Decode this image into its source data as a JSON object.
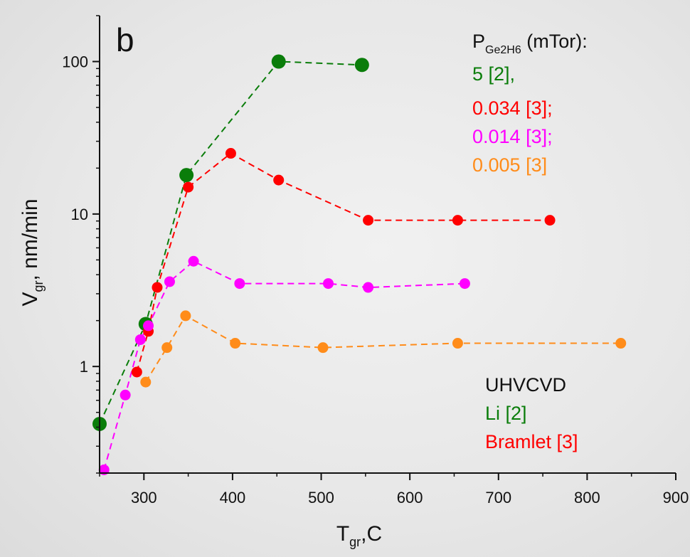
{
  "chart_data": {
    "type": "scatter",
    "panel_label": "b",
    "xlabel": "T",
    "xlabel_sub": "gr",
    "xlabel_suffix": ",C",
    "ylabel": "V",
    "ylabel_sub": "gr",
    "ylabel_suffix": ", nm/min",
    "xlim": [
      250,
      900
    ],
    "ylim": [
      0.2,
      200
    ],
    "yscale": "log",
    "xticks": [
      300,
      400,
      500,
      600,
      700,
      800,
      900
    ],
    "yticks": [
      1,
      10,
      100
    ],
    "grid": false,
    "line_style": "dashed",
    "legend_title_main": "P",
    "legend_title_sub": "Ge2H6",
    "legend_title_suffix": " (mTor):",
    "legend_position": "top-right",
    "series": [
      {
        "name": "5 [2],",
        "color": "#0a7d0a",
        "marker_size": "large",
        "x": [
          250,
          302,
          348,
          452,
          546
        ],
        "y": [
          0.42,
          1.9,
          18,
          100,
          95
        ]
      },
      {
        "name": "0.034 [3];",
        "color": "#ff0000",
        "marker_size": "small",
        "x": [
          292,
          305,
          315,
          350,
          398,
          452,
          553,
          654,
          758
        ],
        "y": [
          0.92,
          1.7,
          3.3,
          15,
          25,
          16.7,
          9.1,
          9.1,
          9.1
        ]
      },
      {
        "name": "0.014 [3];",
        "color": "#ff00ff",
        "marker_size": "small",
        "x": [
          255,
          279,
          296,
          305,
          329,
          356,
          408,
          508,
          553,
          662
        ],
        "y": [
          0.21,
          0.65,
          1.5,
          1.85,
          3.6,
          4.9,
          3.5,
          3.5,
          3.3,
          3.5
        ]
      },
      {
        "name": "0.005 [3]",
        "color": "#ff8c1a",
        "marker_size": "small",
        "x": [
          302,
          326,
          347,
          403,
          502,
          654,
          838
        ],
        "y": [
          0.79,
          1.33,
          2.15,
          1.42,
          1.33,
          1.42,
          1.42
        ]
      }
    ],
    "annotations": [
      {
        "text": "UHVCVD",
        "color": "#111111"
      },
      {
        "text": "Li [2]",
        "color": "#0a7d0a"
      },
      {
        "text": "Bramlet [3]",
        "color": "#ff0000"
      }
    ]
  }
}
